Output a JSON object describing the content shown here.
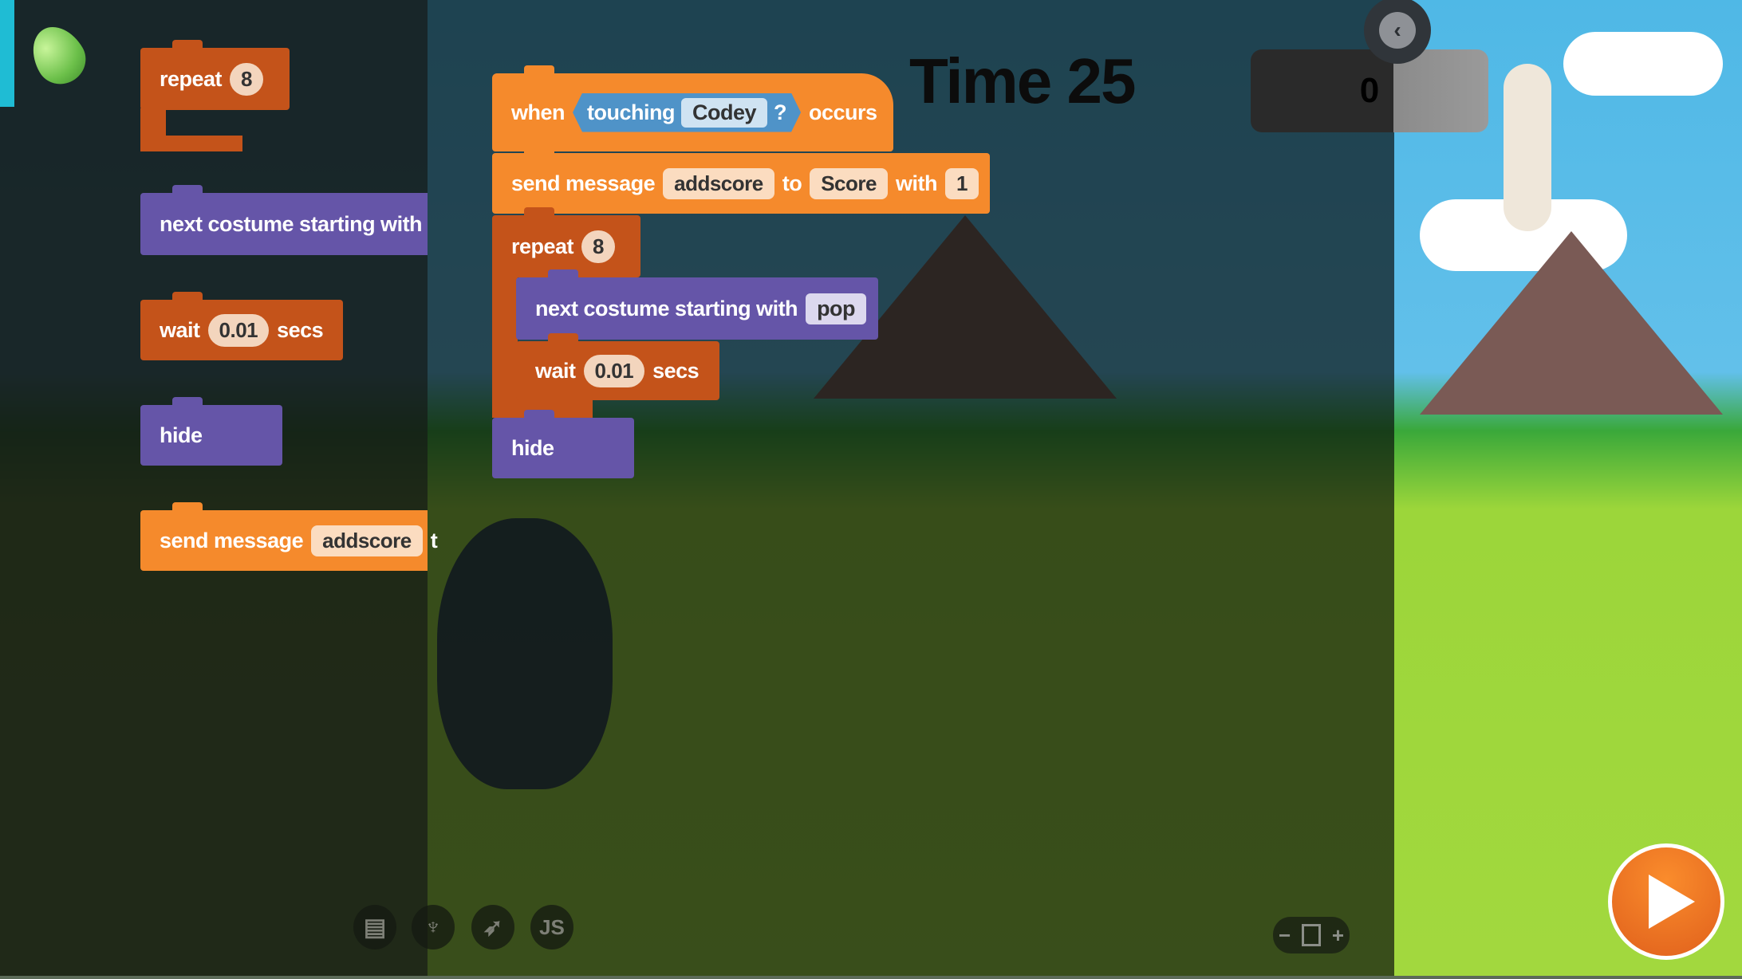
{
  "stage_title": "Time 25",
  "score": "0",
  "palette": {
    "repeat": {
      "label": "repeat",
      "value": "8"
    },
    "next_costume": {
      "label": "next costume starting with"
    },
    "wait": {
      "label": "wait",
      "value": "0.01",
      "unit": "secs"
    },
    "hide": {
      "label": "hide"
    },
    "send_message": {
      "label": "send message",
      "value": "addscore",
      "to": "t"
    }
  },
  "script": {
    "hat": {
      "when": "when",
      "condition": "touching",
      "target": "Codey",
      "q": "?",
      "occurs": "occurs"
    },
    "send": {
      "label": "send message",
      "message": "addscore",
      "to": "to",
      "receiver": "Score",
      "with": "with",
      "value": "1"
    },
    "repeat": {
      "label": "repeat",
      "value": "8"
    },
    "next_costume": {
      "label": "next costume starting with",
      "value": "pop"
    },
    "wait": {
      "label": "wait",
      "value": "0.01",
      "unit": "secs"
    },
    "hide": {
      "label": "hide"
    }
  },
  "bottom_toolbar": {
    "icons": [
      "blocks-icon",
      "python-icon",
      "swift-icon",
      "js-icon"
    ],
    "js_label": "JS"
  },
  "zoom": {
    "minus": "−",
    "plus": "+"
  },
  "back_label": "‹",
  "colors": {
    "events": "#f58a2c",
    "control": "#c4531a",
    "looks": "#6555a8",
    "sensing": "#4f93c8",
    "accent": "#1fbcd4"
  }
}
